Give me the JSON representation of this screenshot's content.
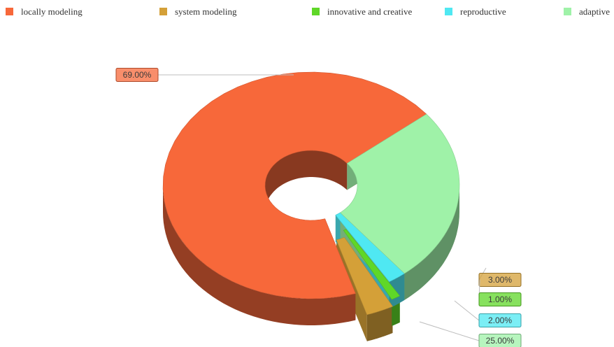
{
  "chart_data": {
    "type": "pie",
    "variant": "3d-donut",
    "categories": [
      "locally modeling",
      "system modeling",
      "innovative and creative",
      "reproductive",
      "adaptive"
    ],
    "values": [
      69.0,
      3.0,
      1.0,
      2.0,
      25.0
    ],
    "data_labels": [
      "69.00%",
      "3.00%",
      "1.00%",
      "2.00%",
      "25.00%"
    ],
    "colors": [
      "#f7683a",
      "#d4a038",
      "#5fd728",
      "#4fe8f2",
      "#9ff2a8"
    ],
    "legend": {
      "placement": "top",
      "entries": [
        "locally modeling",
        "system modeling",
        "innovative and creative",
        "reproductive",
        "adaptive"
      ]
    },
    "exploded": [
      "system modeling",
      "innovative and creative"
    ]
  }
}
